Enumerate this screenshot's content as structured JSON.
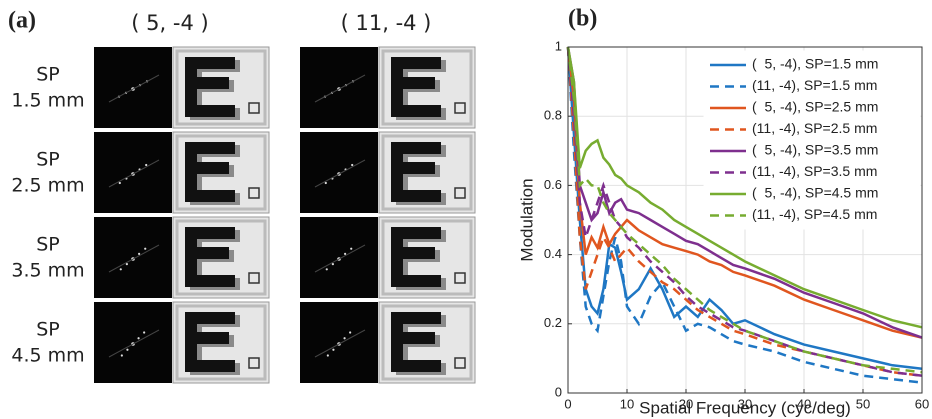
{
  "panel_a": {
    "label": "(a)",
    "columns": [
      "( 5, -4 )",
      "( 11, -4 )"
    ],
    "rows": [
      [
        "SP",
        "1.5 mm"
      ],
      [
        "SP",
        "2.5 mm"
      ],
      [
        "SP",
        "3.5 mm"
      ],
      [
        "SP",
        "4.5 mm"
      ]
    ]
  },
  "chart_data": {
    "type": "line",
    "panel_label": "(b)",
    "xlabel": "Spatial Frequency (cyc/deg)",
    "ylabel": "Modulation",
    "xlim": [
      0,
      60
    ],
    "ylim": [
      0,
      1
    ],
    "xticks": [
      0,
      10,
      20,
      30,
      40,
      50,
      60
    ],
    "yticks": [
      0,
      0.2,
      0.4,
      0.6,
      0.8,
      1
    ],
    "grid": true,
    "legend": "upper right",
    "x": [
      0,
      1,
      2,
      3,
      4,
      5,
      6,
      7,
      8,
      9,
      10,
      12,
      14,
      16,
      18,
      20,
      22,
      24,
      26,
      28,
      30,
      35,
      40,
      45,
      50,
      55,
      60
    ],
    "series": [
      {
        "name": "(  5, -4), SP=1.5 mm",
        "color": "#1f77c4",
        "dash": false,
        "values": [
          1,
          0.75,
          0.5,
          0.3,
          0.25,
          0.23,
          0.3,
          0.43,
          0.42,
          0.35,
          0.27,
          0.3,
          0.36,
          0.3,
          0.22,
          0.25,
          0.22,
          0.27,
          0.24,
          0.2,
          0.21,
          0.17,
          0.14,
          0.12,
          0.1,
          0.08,
          0.07
        ]
      },
      {
        "name": "(11, -4), SP=1.5 mm",
        "color": "#1f77c4",
        "dash": true,
        "values": [
          1,
          0.7,
          0.45,
          0.25,
          0.2,
          0.18,
          0.28,
          0.38,
          0.45,
          0.38,
          0.25,
          0.2,
          0.28,
          0.32,
          0.25,
          0.18,
          0.2,
          0.19,
          0.17,
          0.15,
          0.14,
          0.12,
          0.09,
          0.07,
          0.05,
          0.04,
          0.03
        ]
      },
      {
        "name": "(  5, -4), SP=2.5 mm",
        "color": "#e0561f",
        "dash": false,
        "values": [
          1,
          0.85,
          0.55,
          0.4,
          0.45,
          0.42,
          0.48,
          0.43,
          0.46,
          0.48,
          0.5,
          0.47,
          0.45,
          0.43,
          0.42,
          0.41,
          0.4,
          0.38,
          0.37,
          0.35,
          0.34,
          0.31,
          0.27,
          0.24,
          0.21,
          0.18,
          0.16
        ]
      },
      {
        "name": "(11, -4), SP=2.5 mm",
        "color": "#e0561f",
        "dash": true,
        "values": [
          1,
          0.75,
          0.45,
          0.3,
          0.35,
          0.4,
          0.45,
          0.42,
          0.38,
          0.4,
          0.42,
          0.38,
          0.35,
          0.32,
          0.3,
          0.27,
          0.24,
          0.22,
          0.2,
          0.18,
          0.17,
          0.14,
          0.12,
          0.1,
          0.08,
          0.06,
          0.05
        ]
      },
      {
        "name": "(  5, -4), SP=3.5 mm",
        "color": "#7e2f8e",
        "dash": false,
        "values": [
          1,
          0.9,
          0.6,
          0.55,
          0.5,
          0.52,
          0.58,
          0.52,
          0.55,
          0.56,
          0.53,
          0.52,
          0.5,
          0.48,
          0.46,
          0.44,
          0.43,
          0.41,
          0.39,
          0.37,
          0.36,
          0.33,
          0.29,
          0.26,
          0.23,
          0.19,
          0.16
        ]
      },
      {
        "name": "(11, -4), SP=3.5 mm",
        "color": "#7e2f8e",
        "dash": true,
        "values": [
          1,
          0.8,
          0.55,
          0.45,
          0.5,
          0.55,
          0.6,
          0.55,
          0.5,
          0.48,
          0.45,
          0.42,
          0.38,
          0.35,
          0.32,
          0.28,
          0.25,
          0.23,
          0.21,
          0.19,
          0.18,
          0.15,
          0.12,
          0.1,
          0.08,
          0.06,
          0.05
        ]
      },
      {
        "name": "(  5, -4), SP=4.5 mm",
        "color": "#77ac30",
        "dash": false,
        "values": [
          1,
          0.9,
          0.65,
          0.7,
          0.72,
          0.73,
          0.68,
          0.66,
          0.63,
          0.62,
          0.6,
          0.58,
          0.55,
          0.53,
          0.5,
          0.48,
          0.46,
          0.44,
          0.42,
          0.4,
          0.38,
          0.34,
          0.3,
          0.27,
          0.24,
          0.21,
          0.19
        ]
      },
      {
        "name": "(11, -4), SP=4.5 mm",
        "color": "#77ac30",
        "dash": true,
        "values": [
          1,
          0.85,
          0.6,
          0.62,
          0.6,
          0.6,
          0.55,
          0.52,
          0.5,
          0.48,
          0.46,
          0.43,
          0.4,
          0.37,
          0.33,
          0.3,
          0.27,
          0.24,
          0.22,
          0.2,
          0.18,
          0.15,
          0.12,
          0.1,
          0.08,
          0.07,
          0.06
        ]
      }
    ]
  }
}
